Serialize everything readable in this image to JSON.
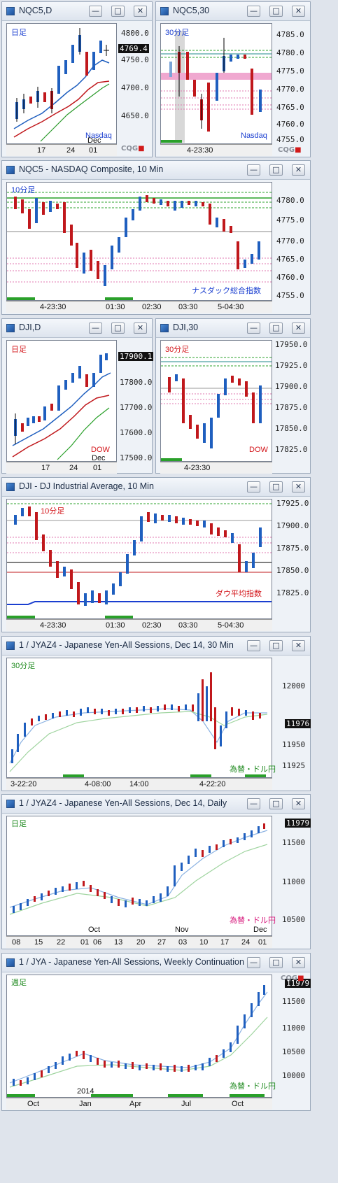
{
  "cqg": "CQG",
  "panels": {
    "nqc5d": {
      "title": "NQC5,D",
      "tag_tl": "日足",
      "tag_br": "Nasdaq",
      "yaxis": [
        "4800.0",
        "4750.0",
        "4700.0",
        "4650.0"
      ],
      "price": "4769.4",
      "xaxis": [
        "17",
        "24",
        "Dec",
        "01"
      ]
    },
    "nqc530": {
      "title": "NQC5,30",
      "tag_tl": "30分足",
      "tag_br": "Nasdaq",
      "yaxis": [
        "4785.0",
        "4780.0",
        "4775.0",
        "4770.0",
        "4765.0",
        "4760.0",
        "4755.0"
      ],
      "xaxis": [
        "4-23:30"
      ]
    },
    "nqc510": {
      "title": "NQC5 - NASDAQ Composite, 10 Min",
      "tag_tl": "10分足",
      "tag_br": "ナスダック総合指数",
      "yaxis": [
        "4780.0",
        "4775.0",
        "4770.0",
        "4765.0",
        "4760.0",
        "4755.0"
      ],
      "xaxis": [
        "4-23:30",
        "01:30",
        "02:30",
        "03:30",
        "5-04:30"
      ]
    },
    "djid": {
      "title": "DJI,D",
      "tag_tl": "日足",
      "tag_br": "DOW",
      "yaxis": [
        "17800.0",
        "17700.0",
        "17600.0",
        "17500.0"
      ],
      "price": "17900.1",
      "xaxis": [
        "17",
        "24",
        "Dec",
        "01"
      ]
    },
    "dji30": {
      "title": "DJI,30",
      "tag_tl": "30分足",
      "tag_br": "DOW",
      "yaxis": [
        "17950.0",
        "17925.0",
        "17900.0",
        "17875.0",
        "17850.0",
        "17825.0"
      ],
      "xaxis": [
        "4-23:30"
      ]
    },
    "dji10": {
      "title": "DJI - DJ Industrial Average, 10 Min",
      "tag_tl": "10分足",
      "tag_br": "ダウ平均指数",
      "yaxis": [
        "17925.0",
        "17900.0",
        "17875.0",
        "17850.0",
        "17825.0"
      ],
      "xaxis": [
        "4-23:30",
        "01:30",
        "02:30",
        "03:30",
        "5-04:30"
      ]
    },
    "jy30": {
      "title": "1 / JYAZ4 - Japanese Yen-All Sessions, Dec 14, 30 Min",
      "tag_tl": "30分足",
      "tag_br": "為替・ドル円",
      "yaxis": [
        "12000",
        "11950",
        "11925"
      ],
      "price": "11976",
      "xaxis": [
        "3-22:20",
        "4-08:00",
        "14:00",
        "4-22:20"
      ]
    },
    "jyd": {
      "title": "1 / JYAZ4 - Japanese Yen-All Sessions, Dec 14, Daily",
      "tag_tl": "日足",
      "tag_br": "為替・ドル円",
      "yaxis": [
        "11500",
        "11000",
        "10500"
      ],
      "price": "11979",
      "month_labels": [
        "Oct",
        "Nov",
        "Dec"
      ],
      "xaxis": [
        "08",
        "15",
        "22",
        "01",
        "06",
        "13",
        "20",
        "27",
        "03",
        "10",
        "17",
        "24",
        "01"
      ]
    },
    "jyw": {
      "title": "1 / JYA - Japanese Yen-All Sessions, Weekly Continuation",
      "tag_tl": "週足",
      "tag_br": "為替・ドル円",
      "yaxis": [
        "11500",
        "11000",
        "10500",
        "10000"
      ],
      "price": "11979",
      "year_label": "2014",
      "xaxis": [
        "Oct",
        "Jan",
        "Apr",
        "Jul",
        "Oct"
      ]
    }
  },
  "colors": {
    "up": "#1f5fbf",
    "down": "#c0181c",
    "tag_blue": "#1b3fd0",
    "tag_red": "#d3151a",
    "tag_green": "#1f8a1f",
    "tag_pink": "#d6157a"
  }
}
